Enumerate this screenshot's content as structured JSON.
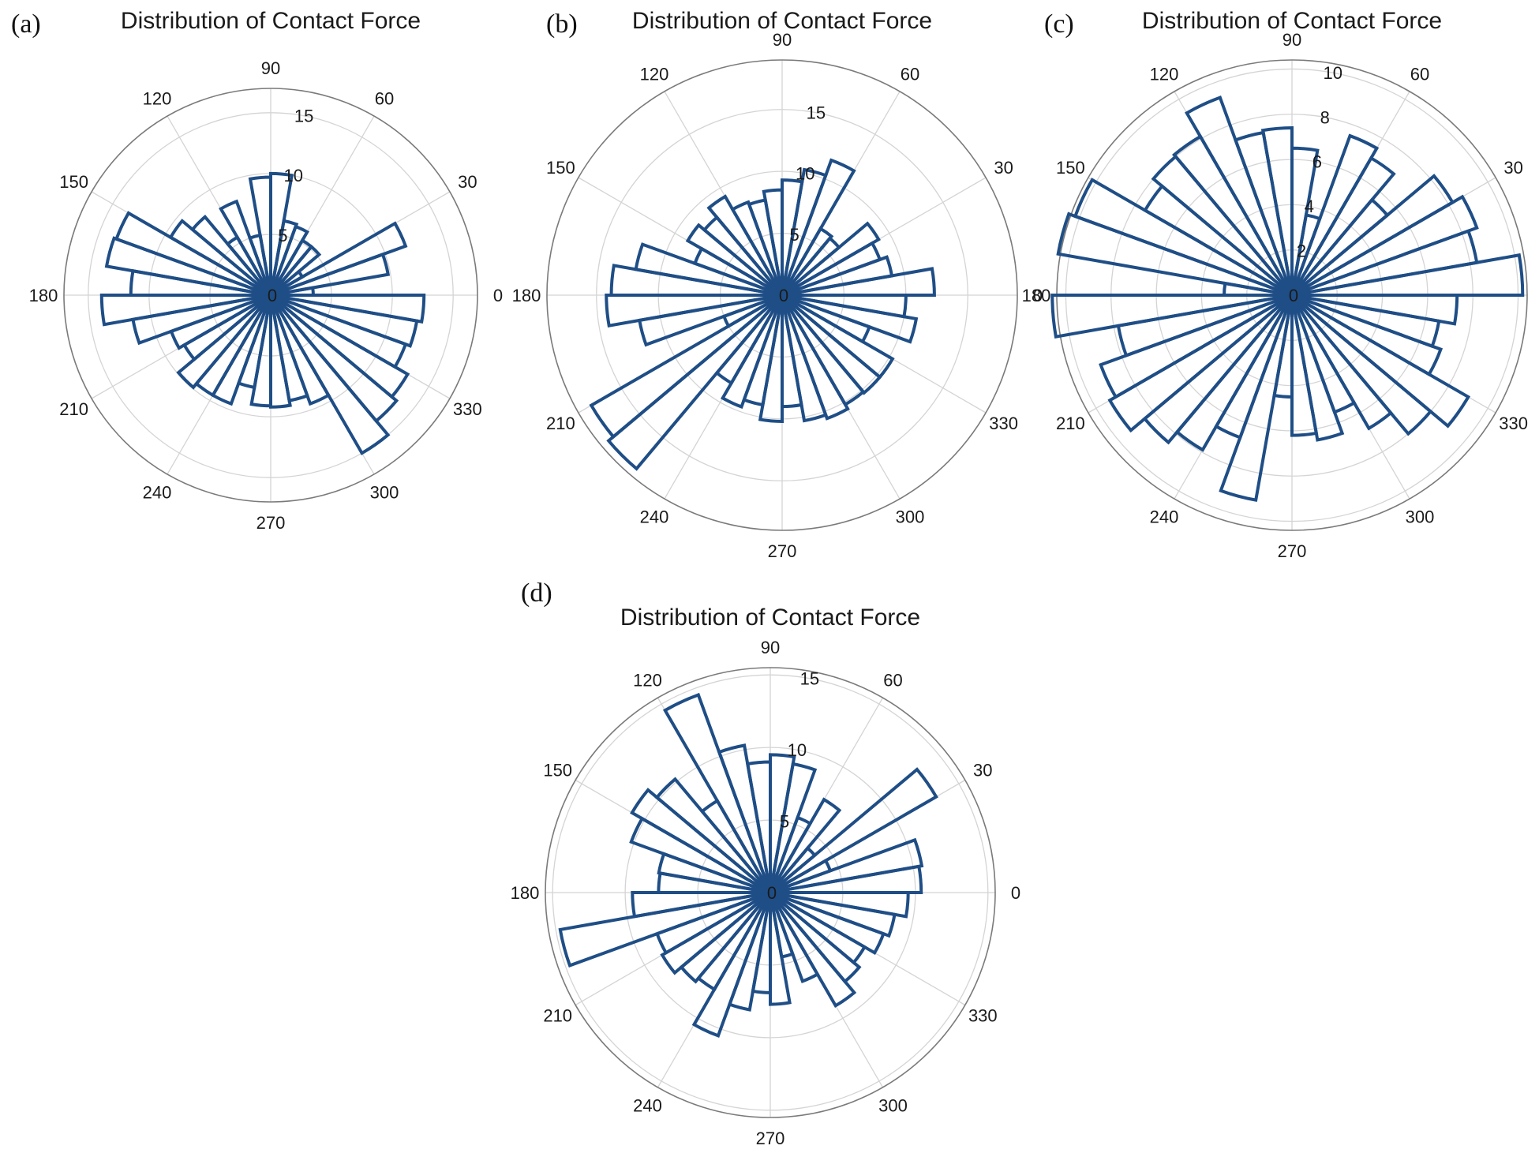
{
  "panel_labels": [
    "(a)",
    "(b)",
    "(c)",
    "(d)"
  ],
  "chart_data": [
    {
      "type": "polar-histogram",
      "panel": "(a)",
      "title": "Distribution of Contact Force",
      "rlim": [
        0,
        17
      ],
      "rticks": [
        0,
        5,
        10,
        15
      ],
      "angle_ticks": [
        0,
        30,
        60,
        90,
        120,
        150,
        180,
        210,
        240,
        270,
        300,
        330
      ],
      "bin_width_deg": 10,
      "values": [
        3.5,
        9.8,
        11.8,
        3.0,
        5.2,
        5.2,
        6.0,
        6.2,
        10.0,
        9.7,
        5.0,
        8.2,
        5.5,
        8.4,
        9.5,
        13.5,
        13.7,
        11.5,
        13.9,
        11.5,
        8.7,
        8.2,
        9.9,
        9.5,
        9.5,
        7.7,
        9.1,
        9.2,
        8.8,
        9.5,
        15.0,
        13.5,
        13.0,
        11.8,
        12.2,
        12.6
      ]
    },
    {
      "type": "polar-histogram",
      "panel": "(b)",
      "title": "Distribution of Contact Force",
      "rlim": [
        0,
        19
      ],
      "rticks": [
        0,
        5,
        10,
        15
      ],
      "angle_ticks": [
        0,
        30,
        60,
        90,
        120,
        150,
        180,
        210,
        240,
        270,
        300,
        330
      ],
      "bin_width_deg": 10,
      "values": [
        12.3,
        9.0,
        8.4,
        9.0,
        6.0,
        6.2,
        11.6,
        10.3,
        9.3,
        8.5,
        7.8,
        8.0,
        9.2,
        8.2,
        8.8,
        7.5,
        12.0,
        13.8,
        14.2,
        11.7,
        5.0,
        17.8,
        18.3,
        8.2,
        9.6,
        9.0,
        10.2,
        9.0,
        10.3,
        10.6,
        10.2,
        10.3,
        10.3,
        7.5,
        11.0,
        10.0
      ]
    },
    {
      "type": "polar-histogram",
      "panel": "(c)",
      "title": "Distribution of Contact Force",
      "rlim": [
        0,
        10.4
      ],
      "rticks": [
        0,
        2,
        4,
        6,
        8,
        10
      ],
      "angle_ticks": [
        0,
        30,
        60,
        90,
        120,
        150,
        180,
        210,
        240,
        270,
        300,
        330
      ],
      "bin_width_deg": 10,
      "values": [
        10.2,
        8.3,
        8.7,
        8.2,
        5.5,
        7.0,
        7.5,
        3.6,
        6.5,
        7.4,
        7.3,
        9.3,
        8.1,
        8.0,
        7.5,
        10.2,
        10.5,
        3.0,
        10.6,
        7.8,
        9.0,
        9.3,
        8.5,
        7.9,
        6.7,
        9.2,
        4.5,
        6.2,
        6.5,
        5.5,
        6.8,
        8.0,
        9.0,
        7.0,
        6.6,
        7.3
      ]
    },
    {
      "type": "polar-histogram",
      "panel": "(d)",
      "title": "Distribution of Contact Force",
      "rlim": [
        0,
        15.5
      ],
      "rticks": [
        0,
        5,
        10,
        15
      ],
      "angle_ticks": [
        0,
        30,
        60,
        90,
        120,
        150,
        180,
        210,
        240,
        270,
        300,
        330
      ],
      "bin_width_deg": 10,
      "values": [
        10.4,
        10.6,
        4.4,
        13.2,
        4.0,
        7.4,
        5.5,
        9.0,
        9.5,
        9.0,
        10.3,
        14.5,
        7.3,
        10.2,
        11.0,
        10.2,
        7.8,
        7.7,
        9.5,
        14.7,
        8.3,
        8.6,
        8.0,
        7.7,
        10.5,
        8.2,
        6.9,
        7.7,
        4.5,
        6.5,
        9.0,
        8.0,
        7.5,
        8.3,
        8.7,
        9.5
      ]
    }
  ]
}
